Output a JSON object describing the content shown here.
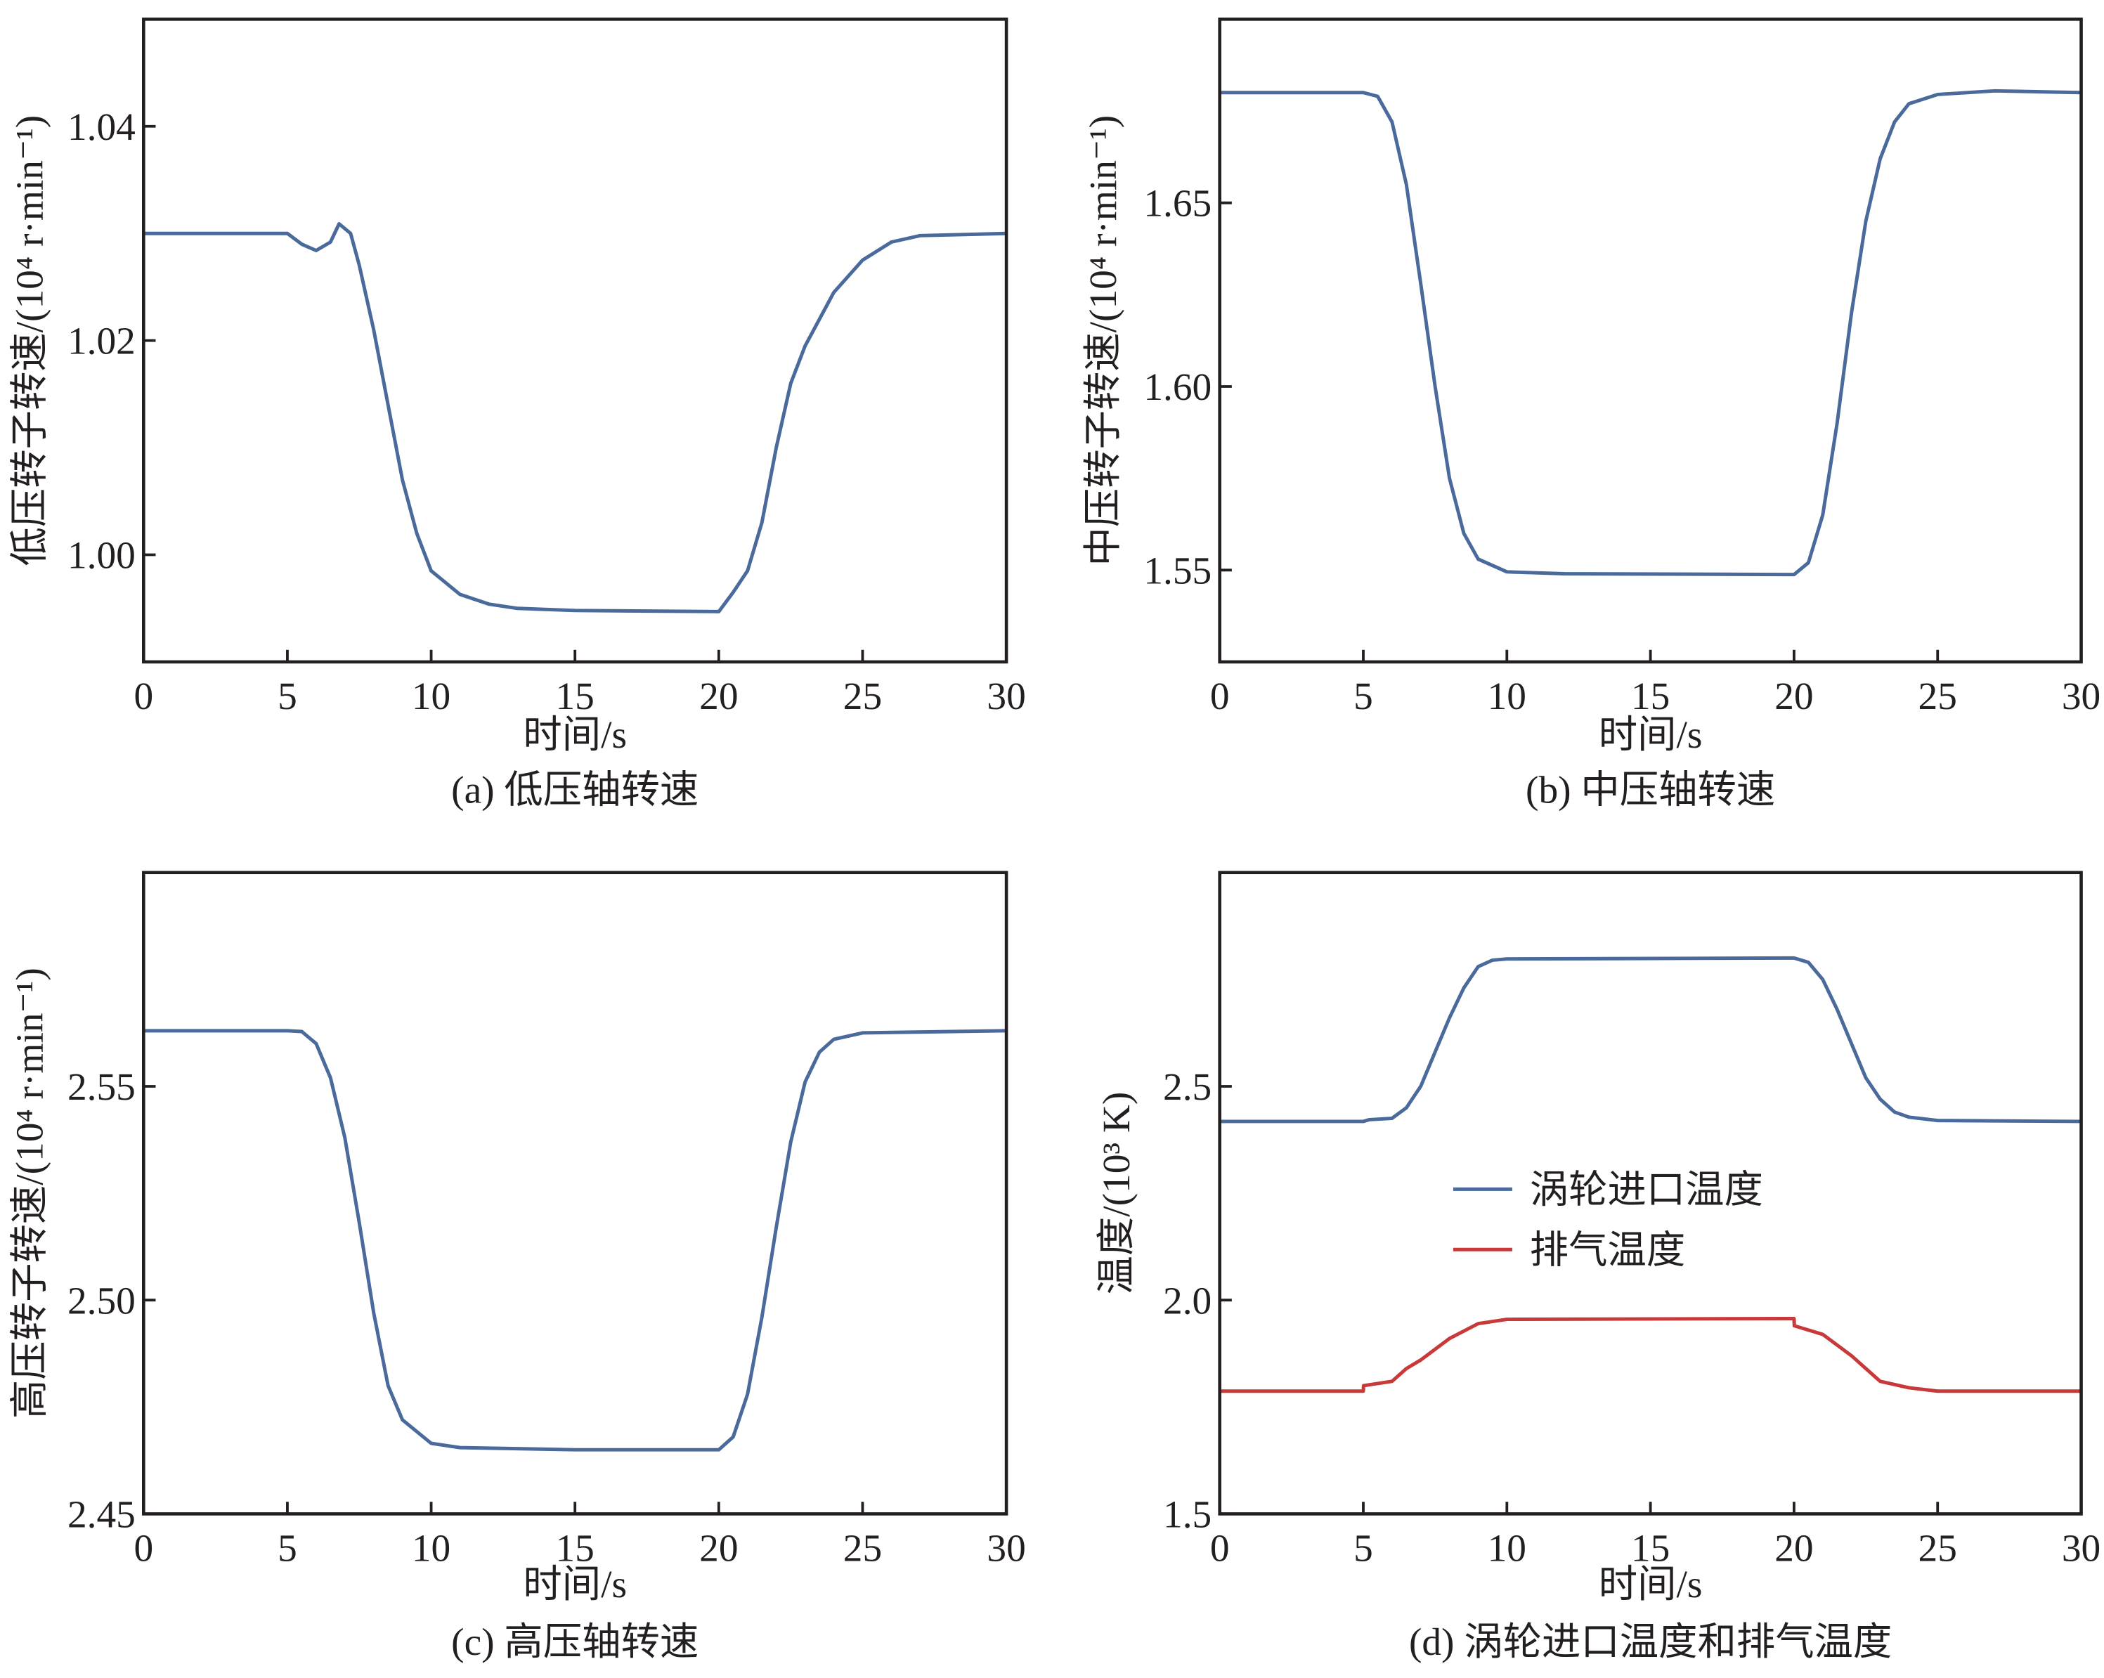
{
  "chart_data": [
    {
      "type": "line",
      "caption": "(a) 低压轴转速",
      "xlabel": "时间/s",
      "ylabel": "低压转子转速/(10⁴ r·min⁻¹)",
      "xlim": [
        0,
        30
      ],
      "ylim": [
        0.99,
        1.05
      ],
      "xticks": [
        0,
        5,
        10,
        15,
        20,
        25,
        30
      ],
      "yticks": [
        1.0,
        1.02,
        1.04
      ],
      "ytick_labels": [
        "1.00",
        "1.02",
        "1.04"
      ],
      "series": [
        {
          "name": "低压转子转速",
          "color": "#4a6a9c",
          "x": [
            0,
            5,
            5.5,
            6,
            6.5,
            6.8,
            7.2,
            7.5,
            8,
            8.5,
            9,
            9.5,
            10,
            11,
            12,
            13,
            15,
            20,
            20.5,
            21,
            21.5,
            22,
            22.5,
            23,
            24,
            25,
            26,
            27,
            30
          ],
          "y": [
            1.03,
            1.03,
            1.029,
            1.0284,
            1.0292,
            1.0309,
            1.03,
            1.027,
            1.021,
            1.014,
            1.007,
            1.002,
            0.9985,
            0.9963,
            0.9954,
            0.995,
            0.9948,
            0.9947,
            0.9965,
            0.9985,
            1.003,
            1.01,
            1.016,
            1.0195,
            1.0245,
            1.0275,
            1.0292,
            1.0298,
            1.03
          ]
        }
      ]
    },
    {
      "type": "line",
      "caption": "(b) 中压轴转速",
      "xlabel": "时间/s",
      "ylabel": "中压转子转速/(10⁴ r·min⁻¹)",
      "xlim": [
        0,
        30
      ],
      "ylim": [
        1.525,
        1.7
      ],
      "xticks": [
        0,
        5,
        10,
        15,
        20,
        25,
        30
      ],
      "yticks": [
        1.55,
        1.6,
        1.65
      ],
      "ytick_labels": [
        "1.55",
        "1.60",
        "1.65"
      ],
      "series": [
        {
          "name": "中压转子转速",
          "color": "#4a6a9c",
          "x": [
            0,
            5,
            5.5,
            6,
            6.5,
            7,
            7.5,
            8,
            8.5,
            9,
            10,
            12,
            20,
            20.5,
            21,
            21.5,
            22,
            22.5,
            23,
            23.5,
            24,
            25,
            27,
            30
          ],
          "y": [
            1.68,
            1.68,
            1.679,
            1.672,
            1.655,
            1.628,
            1.6,
            1.575,
            1.56,
            1.553,
            1.5495,
            1.549,
            1.5488,
            1.552,
            1.565,
            1.59,
            1.62,
            1.645,
            1.662,
            1.672,
            1.677,
            1.6795,
            1.6805,
            1.68
          ]
        }
      ]
    },
    {
      "type": "line",
      "caption": "(c) 高压轴转速",
      "xlabel": "时间/s",
      "ylabel": "高压转子转速/(10⁴ r·min⁻¹)",
      "xlim": [
        0,
        30
      ],
      "ylim": [
        2.45,
        2.6
      ],
      "xticks": [
        0,
        5,
        10,
        15,
        20,
        25,
        30
      ],
      "yticks": [
        2.45,
        2.5,
        2.55
      ],
      "ytick_labels": [
        "2.45",
        "2.50",
        "2.55"
      ],
      "series": [
        {
          "name": "高压转子转速",
          "color": "#4a6a9c",
          "x": [
            0,
            5,
            5.5,
            6,
            6.5,
            7,
            7.5,
            8,
            8.5,
            9,
            10,
            11,
            15,
            20,
            20.5,
            21,
            21.5,
            22,
            22.5,
            23,
            23.5,
            24,
            25,
            30
          ],
          "y": [
            2.563,
            2.563,
            2.5628,
            2.56,
            2.552,
            2.538,
            2.518,
            2.497,
            2.48,
            2.472,
            2.4665,
            2.4655,
            2.465,
            2.465,
            2.468,
            2.478,
            2.496,
            2.517,
            2.537,
            2.551,
            2.558,
            2.561,
            2.5625,
            2.563
          ]
        }
      ]
    },
    {
      "type": "line",
      "caption": "(d) 涡轮进口温度和排气温度",
      "xlabel": "时间/s",
      "ylabel": "温度/(10³ K)",
      "xlim": [
        0,
        30
      ],
      "ylim": [
        1.5,
        3.0
      ],
      "xticks": [
        0,
        5,
        10,
        15,
        20,
        25,
        30
      ],
      "yticks": [
        1.5,
        2.0,
        2.5
      ],
      "ytick_labels": [
        "1.5",
        "2.0",
        "2.5"
      ],
      "legend": "center-left",
      "series": [
        {
          "name": "涡轮进口温度",
          "color": "#4a6a9c",
          "x": [
            0,
            5,
            5.2,
            6,
            6.5,
            7,
            7.5,
            8,
            8.5,
            9,
            9.5,
            10,
            20,
            20.5,
            21,
            21.5,
            22,
            22.5,
            23,
            23.5,
            24,
            25,
            30
          ],
          "y": [
            2.418,
            2.418,
            2.422,
            2.425,
            2.45,
            2.5,
            2.58,
            2.66,
            2.73,
            2.78,
            2.795,
            2.798,
            2.8,
            2.79,
            2.75,
            2.68,
            2.6,
            2.52,
            2.47,
            2.44,
            2.428,
            2.42,
            2.418
          ]
        },
        {
          "name": "排气温度",
          "color": "#c8393a",
          "x": [
            0,
            5,
            5.01,
            6,
            6.5,
            7,
            8,
            9,
            10,
            20,
            20.01,
            21,
            22,
            22.5,
            23,
            24,
            25,
            30
          ],
          "y": [
            1.787,
            1.787,
            1.8,
            1.81,
            1.84,
            1.86,
            1.91,
            1.945,
            1.955,
            1.957,
            1.94,
            1.92,
            1.87,
            1.84,
            1.81,
            1.795,
            1.787,
            1.787
          ]
        }
      ]
    }
  ]
}
